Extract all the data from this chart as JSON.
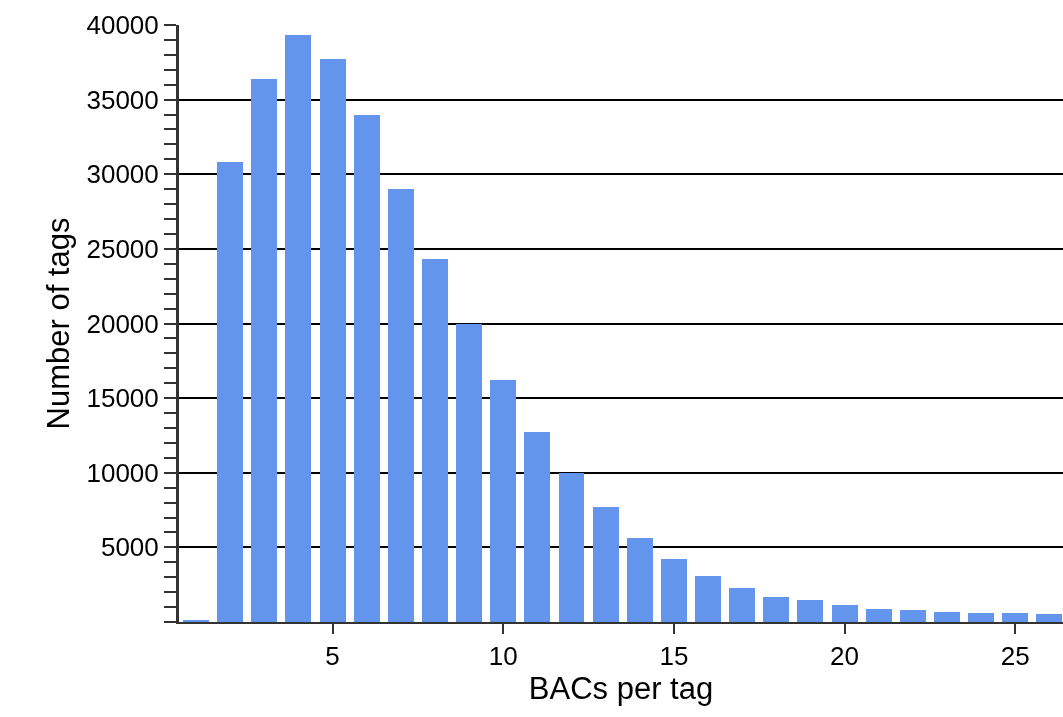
{
  "chart_data": {
    "type": "bar",
    "xlabel": "BACs per tag",
    "ylabel": "Number of tags",
    "x": [
      1,
      2,
      3,
      4,
      5,
      6,
      7,
      8,
      9,
      10,
      11,
      12,
      13,
      14,
      15,
      16,
      17,
      18,
      19,
      20,
      21,
      22,
      23,
      24,
      25,
      26
    ],
    "values": [
      100,
      30800,
      36400,
      39300,
      37700,
      34000,
      29000,
      24300,
      20000,
      16200,
      12700,
      10000,
      7700,
      5600,
      4200,
      3100,
      2300,
      1700,
      1450,
      1170,
      900,
      780,
      700,
      580,
      580,
      510
    ],
    "color": "#6495ed",
    "xlim": [
      0.5,
      26.4
    ],
    "xticks": [
      5,
      10,
      15,
      20,
      25
    ],
    "ylim": [
      0,
      40000
    ],
    "yticks": [
      {
        "value": 0,
        "label": null
      },
      {
        "value": 1000,
        "label": null
      },
      {
        "value": 2000,
        "label": null
      },
      {
        "value": 3000,
        "label": null
      },
      {
        "value": 4000,
        "label": null
      },
      5000,
      {
        "value": 6000,
        "label": null
      },
      {
        "value": 7000,
        "label": null
      },
      {
        "value": 8000,
        "label": null
      },
      {
        "value": 9000,
        "label": null
      },
      10000,
      {
        "value": 11000,
        "label": null
      },
      {
        "value": 12000,
        "label": null
      },
      {
        "value": 13000,
        "label": null
      },
      {
        "value": 14000,
        "label": null
      },
      15000,
      {
        "value": 16000,
        "label": null
      },
      {
        "value": 17000,
        "label": null
      },
      {
        "value": 18000,
        "label": null
      },
      {
        "value": 19000,
        "label": null
      },
      20000,
      {
        "value": 21000,
        "label": null
      },
      {
        "value": 22000,
        "label": null
      },
      {
        "value": 23000,
        "label": null
      },
      {
        "value": 24000,
        "label": null
      },
      25000,
      {
        "value": 26000,
        "label": null
      },
      {
        "value": 27000,
        "label": null
      },
      {
        "value": 28000,
        "label": null
      },
      {
        "value": 29000,
        "label": null
      },
      30000,
      {
        "value": 31000,
        "label": null
      },
      {
        "value": 32000,
        "label": null
      },
      {
        "value": 33000,
        "label": null
      },
      {
        "value": 34000,
        "label": null
      },
      35000,
      {
        "value": 36000,
        "label": null
      },
      {
        "value": 37000,
        "label": null
      },
      {
        "value": 38000,
        "label": null
      },
      {
        "value": 39000,
        "label": null
      },
      40000
    ],
    "grid": "y",
    "legend": false
  }
}
